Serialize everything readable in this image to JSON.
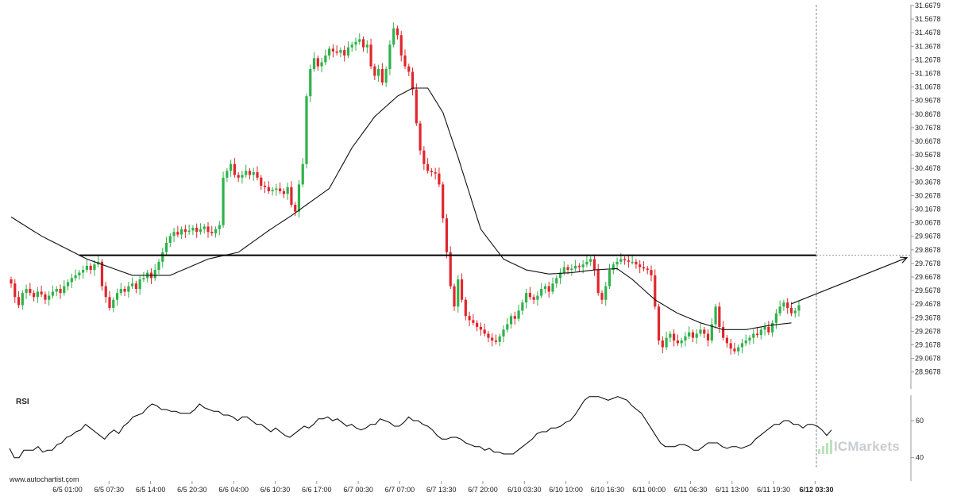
{
  "chart_data": {
    "type": "candlestick",
    "y_axis": {
      "ticks": [
        "31.6679",
        "31.5678",
        "31.4678",
        "31.3678",
        "31.2678",
        "31.1678",
        "31.0678",
        "30.9678",
        "30.8678",
        "30.7678",
        "30.6678",
        "30.5678",
        "30.4678",
        "30.3678",
        "30.2678",
        "30.1678",
        "30.0678",
        "29.9678",
        "29.8678",
        "29.7678",
        "29.6678",
        "29.5678",
        "29.4678",
        "29.3678",
        "29.2678",
        "29.1678",
        "29.0678",
        "28.9678"
      ],
      "range": [
        28.9278,
        31.6679
      ],
      "position": "right"
    },
    "x_axis": {
      "ticks": [
        "6/5 01:00",
        "6/5 07:30",
        "6/5 14:00",
        "6/5 20:30",
        "6/6 04:00",
        "6/6 10:30",
        "6/6 17:00",
        "6/7 00:30",
        "6/7 07:00",
        "6/7 13:30",
        "6/7 20:00",
        "6/10 03:30",
        "6/10 10:00",
        "6/10 16:30",
        "6/11 00:00",
        "6/11 06:30",
        "6/11 13:00",
        "6/11 19:30",
        "6/12 03:30"
      ],
      "highlighted": "6/12 03:30"
    },
    "resistance_level": 29.8278,
    "projection": {
      "from": 29.47,
      "to": 29.81
    },
    "colors": {
      "bull": "#2fb24a",
      "bear": "#e0262c",
      "line": "#000000",
      "grid": "#999999"
    },
    "closes": [
      29.62,
      29.52,
      29.46,
      29.55,
      29.58,
      29.55,
      29.52,
      29.56,
      29.54,
      29.5,
      29.53,
      29.56,
      29.58,
      29.55,
      29.6,
      29.63,
      29.66,
      29.68,
      29.7,
      29.72,
      29.75,
      29.72,
      29.76,
      29.78,
      29.6,
      29.52,
      29.44,
      29.5,
      29.55,
      29.58,
      29.56,
      29.6,
      29.62,
      29.58,
      29.65,
      29.66,
      29.7,
      29.66,
      29.72,
      29.78,
      29.85,
      29.92,
      29.97,
      30.0,
      29.98,
      30.02,
      30.0,
      30.01,
      30.03,
      30.0,
      30.02,
      30.04,
      30.0,
      29.99,
      30.02,
      30.05,
      30.4,
      30.45,
      30.5,
      30.42,
      30.4,
      30.42,
      30.45,
      30.42,
      30.44,
      30.4,
      30.34,
      30.33,
      30.3,
      30.31,
      30.32,
      30.3,
      30.28,
      30.33,
      30.2,
      30.15,
      30.35,
      30.5,
      31.0,
      31.2,
      31.28,
      31.22,
      31.25,
      31.3,
      31.35,
      31.33,
      31.32,
      31.34,
      31.3,
      31.36,
      31.38,
      31.4,
      31.42,
      31.36,
      31.38,
      31.22,
      31.15,
      31.2,
      31.1,
      31.2,
      31.38,
      31.5,
      31.45,
      31.3,
      31.22,
      31.18,
      31.05,
      30.8,
      30.6,
      30.5,
      30.45,
      30.44,
      30.43,
      30.35,
      30.1,
      29.85,
      29.6,
      29.45,
      29.65,
      29.5,
      29.38,
      29.35,
      29.33,
      29.3,
      29.28,
      29.25,
      29.22,
      29.2,
      29.19,
      29.23,
      29.28,
      29.32,
      29.38,
      29.36,
      29.42,
      29.48,
      29.55,
      29.52,
      29.5,
      29.53,
      29.58,
      29.6,
      29.56,
      29.62,
      29.66,
      29.7,
      29.74,
      29.72,
      29.73,
      29.75,
      29.74,
      29.76,
      29.78,
      29.8,
      29.72,
      29.55,
      29.5,
      29.6,
      29.72,
      29.76,
      29.78,
      29.8,
      29.79,
      29.78,
      29.78,
      29.76,
      29.74,
      29.73,
      29.72,
      29.68,
      29.45,
      29.2,
      29.15,
      29.22,
      29.25,
      29.2,
      29.18,
      29.2,
      29.23,
      29.26,
      29.22,
      29.25,
      29.28,
      29.25,
      29.2,
      29.32,
      29.45,
      29.3,
      29.22,
      29.18,
      29.14,
      29.12,
      29.15,
      29.18,
      29.2,
      29.22,
      29.25,
      29.24,
      29.28,
      29.3,
      29.26,
      29.33,
      29.4,
      29.45,
      29.48,
      29.44,
      29.4,
      29.42,
      29.46
    ],
    "ma_control": [
      [
        0,
        30.11
      ],
      [
        8,
        29.97
      ],
      [
        20,
        29.8
      ],
      [
        32,
        29.68
      ],
      [
        42,
        29.68
      ],
      [
        52,
        29.8
      ],
      [
        60,
        29.85
      ],
      [
        68,
        30.01
      ],
      [
        74,
        30.12
      ],
      [
        78,
        30.2
      ],
      [
        84,
        30.32
      ],
      [
        90,
        30.62
      ],
      [
        96,
        30.85
      ],
      [
        102,
        31.0
      ],
      [
        106,
        31.06
      ],
      [
        110,
        31.06
      ],
      [
        114,
        30.88
      ],
      [
        118,
        30.55
      ],
      [
        124,
        30.02
      ],
      [
        130,
        29.8
      ],
      [
        136,
        29.72
      ],
      [
        142,
        29.69
      ],
      [
        148,
        29.7
      ],
      [
        154,
        29.72
      ],
      [
        160,
        29.73
      ],
      [
        164,
        29.65
      ],
      [
        170,
        29.5
      ],
      [
        176,
        29.4
      ],
      [
        182,
        29.33
      ],
      [
        188,
        29.28
      ],
      [
        194,
        29.28
      ],
      [
        200,
        29.31
      ],
      [
        206,
        29.33
      ]
    ],
    "rsi": {
      "label": "RSI",
      "ticks": [
        "60",
        "40"
      ],
      "range": [
        30,
        75
      ],
      "values": [
        45,
        40,
        40,
        44,
        44,
        44,
        46,
        43,
        44,
        44,
        47,
        48,
        51,
        52,
        54,
        55,
        58,
        56,
        54,
        52,
        50,
        53,
        55,
        53,
        57,
        59,
        62,
        63,
        64,
        67,
        69,
        68,
        66,
        66,
        65,
        65,
        64,
        64,
        64,
        66,
        69,
        67,
        66,
        65,
        65,
        63,
        63,
        62,
        60,
        62,
        62,
        60,
        58,
        58,
        56,
        54,
        56,
        54,
        52,
        51,
        53,
        55,
        57,
        56,
        58,
        61,
        61,
        62,
        60,
        61,
        59,
        57,
        58,
        56,
        55,
        56,
        58,
        58,
        61,
        60,
        59,
        57,
        57,
        59,
        62,
        60,
        60,
        58,
        57,
        55,
        52,
        50,
        50,
        51,
        51,
        50,
        48,
        47,
        46,
        46,
        44,
        45,
        43,
        43,
        42,
        42,
        42,
        44,
        46,
        48,
        50,
        53,
        54,
        54,
        56,
        56,
        57,
        59,
        60,
        63,
        67,
        71,
        73,
        73,
        73,
        72,
        71,
        72,
        73,
        72,
        71,
        68,
        66,
        64,
        60,
        56,
        52,
        48,
        46,
        46,
        46,
        47,
        47,
        46,
        44,
        44,
        46,
        48,
        48,
        48,
        46,
        45,
        46,
        46,
        45,
        46,
        47,
        50,
        52,
        54,
        56,
        58,
        58,
        60,
        60,
        58,
        58,
        56,
        58,
        58,
        57,
        55,
        52,
        55
      ]
    }
  },
  "watermark": "www.autochartist.com",
  "brand": {
    "name": "ICMarkets"
  }
}
